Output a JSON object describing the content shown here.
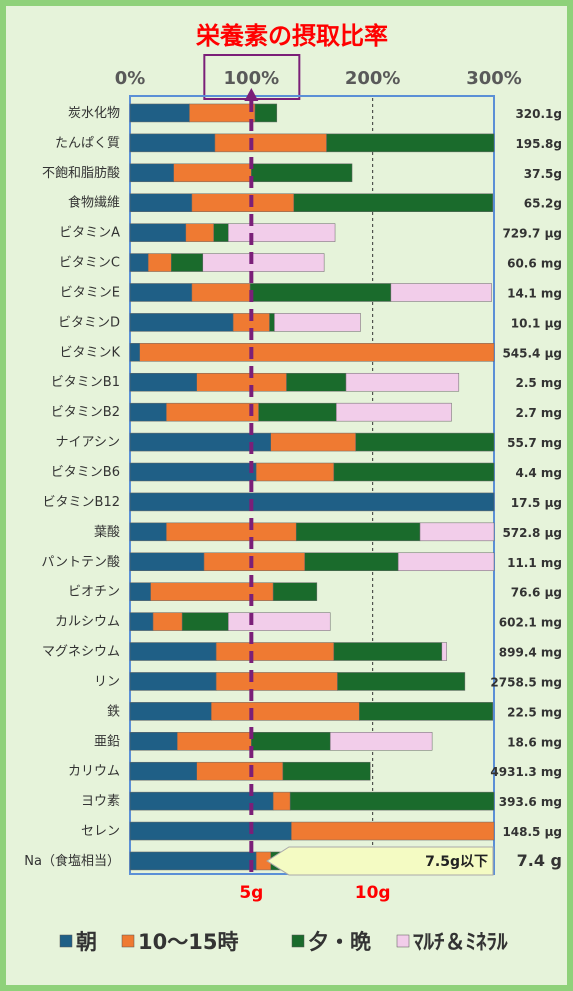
{
  "colors": {
    "page_border": "#8fd17a",
    "background": "#e6f3da",
    "title": "#ff0000",
    "morning": "#1f5f86",
    "midday": "#ef7a32",
    "evening": "#1a6b2c",
    "multi": "#f2cdea",
    "target_line": "#7b1f78",
    "plot_border": "#5b8fd6"
  },
  "chart_data": {
    "type": "bar",
    "orientation": "horizontal",
    "stacked": true,
    "title": "栄養素の摂取比率",
    "xlim": [
      0,
      300
    ],
    "x_ticks": [
      "0%",
      "100%",
      "200%",
      "300%"
    ],
    "x_ticks_values": [
      0,
      100,
      200,
      300
    ],
    "highlighted_tick": "100%",
    "target_line_value": 100,
    "gridlines_at": [
      200
    ],
    "secondary_labels": [
      {
        "text": "5g",
        "value": 100
      },
      {
        "text": "10g",
        "value": 200
      }
    ],
    "legend": [
      {
        "name": "朝",
        "key": "morning"
      },
      {
        "name": "10～15時",
        "key": "midday"
      },
      {
        "name": "夕・晩",
        "key": "evening"
      },
      {
        "name": "ﾏﾙﾁ＆ﾐﾈﾗﾙ",
        "key": "multi"
      }
    ],
    "legend_placement": "bottom",
    "categories": [
      "炭水化物",
      "たんぱく質",
      "不飽和脂肪酸",
      "食物繊維",
      "ビタミンA",
      "ビタミンC",
      "ビタミンE",
      "ビタミンD",
      "ビタミンK",
      "ビタミンB1",
      "ビタミンB2",
      "ナイアシン",
      "ビタミンB6",
      "ビタミンB12",
      "葉酸",
      "パントテン酸",
      "ビオチン",
      "カルシウム",
      "マグネシウム",
      "リン",
      "鉄",
      "亜鉛",
      "カリウム",
      "ヨウ素",
      "セレン",
      "Na（食塩相当）"
    ],
    "totals": [
      "320.1g",
      "195.8g",
      "37.5g",
      "65.2g",
      "729.7 μg",
      "60.6 mg",
      "14.1 mg",
      "10.1 μg",
      "545.4 μg",
      "2.5 mg",
      "2.7 mg",
      "55.7 mg",
      "4.4 mg",
      "17.5 μg",
      "572.8 μg",
      "11.1 mg",
      "76.6 μg",
      "602.1 mg",
      "899.4 mg",
      "2758.5 mg",
      "22.5 mg",
      "18.6 mg",
      "4931.3 mg",
      "393.6 mg",
      "148.5 μg",
      "7.4 g"
    ],
    "series": [
      {
        "name": "朝",
        "values": [
          49,
          70,
          36,
          51,
          46,
          15,
          51,
          85,
          8,
          55,
          30,
          116,
          104,
          300,
          30,
          61,
          17,
          19,
          71,
          71,
          67,
          39,
          55,
          118,
          133,
          104
        ]
      },
      {
        "name": "10～15時",
        "values": [
          54,
          92,
          64,
          84,
          23,
          19,
          48,
          30,
          292,
          74,
          76,
          70,
          64,
          0,
          107,
          83,
          101,
          24,
          97,
          100,
          122,
          61,
          71,
          14,
          167,
          12
        ]
      },
      {
        "name": "夕・晩",
        "values": [
          18,
          138,
          83,
          164,
          12,
          26,
          116,
          4,
          0,
          49,
          64,
          114,
          132,
          0,
          102,
          77,
          36,
          38,
          89,
          105,
          110,
          65,
          72,
          170,
          0,
          34
        ]
      },
      {
        "name": "ﾏﾙﾁ＆ﾐﾈﾗﾙ",
        "values": [
          0,
          0,
          0,
          0,
          88,
          100,
          83,
          71,
          0,
          93,
          95,
          0,
          0,
          0,
          62,
          80,
          0,
          84,
          4,
          0,
          0,
          84,
          0,
          0,
          0,
          0
        ]
      }
    ],
    "annotation": {
      "text": "7.5g以下",
      "row": "Na（食塩相当）"
    }
  }
}
